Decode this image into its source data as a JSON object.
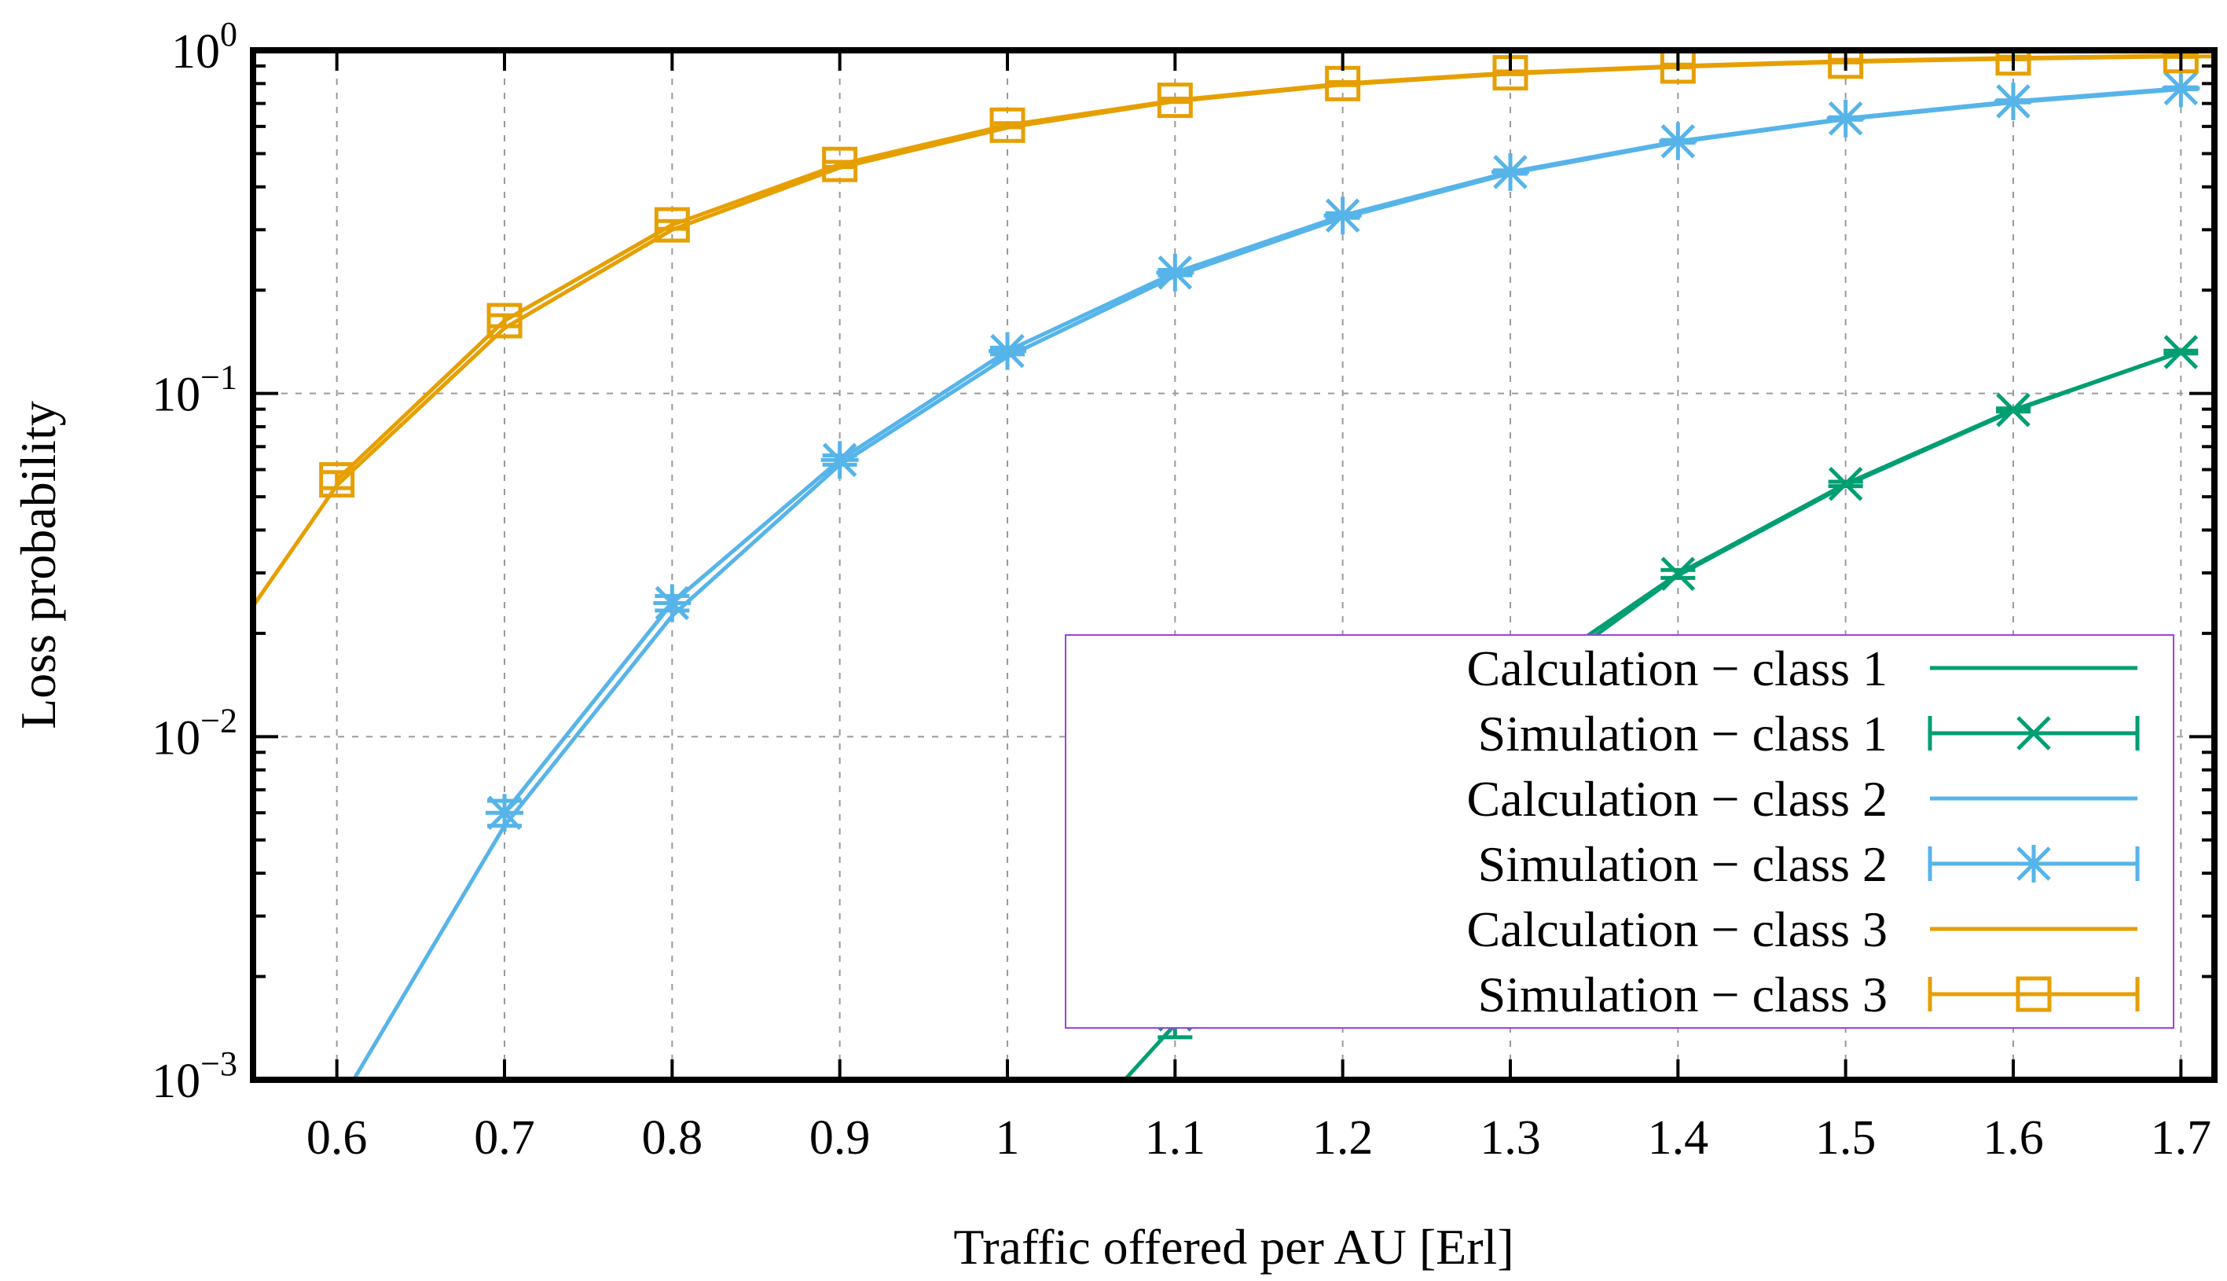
{
  "chart_data": {
    "type": "line",
    "xlabel": "Traffic offered per AU [Erl]",
    "ylabel": "Loss probability",
    "xlim": [
      0.55,
      1.72
    ],
    "ylim": [
      0.001,
      1.0
    ],
    "y_scale": "log",
    "x_ticks": [
      0.6,
      0.7,
      0.8,
      0.9,
      1.0,
      1.1,
      1.2,
      1.3,
      1.4,
      1.5,
      1.6,
      1.7
    ],
    "x_tick_labels": [
      "0.6",
      "0.7",
      "0.8",
      "0.9",
      "1",
      "1.1",
      "1.2",
      "1.3",
      "1.4",
      "1.5",
      "1.6",
      "1.7"
    ],
    "y_ticks": [
      0.001,
      0.01,
      0.1,
      1.0
    ],
    "y_tick_labels": [
      {
        "base": "10",
        "exp": "−3"
      },
      {
        "base": "10",
        "exp": "−2"
      },
      {
        "base": "10",
        "exp": "−1"
      },
      {
        "base": "10",
        "exp": "0"
      }
    ],
    "grid": true,
    "legend_position": "bottom-right",
    "series": [
      {
        "name": "Calculation − class 1",
        "kind": "calculation",
        "color": "#009e73",
        "x": [
          1.07,
          1.1,
          1.2,
          1.3,
          1.4,
          1.5,
          1.6,
          1.7
        ],
        "y": [
          0.001,
          0.00145,
          0.0048,
          0.013,
          0.0295,
          0.054,
          0.089,
          0.132
        ]
      },
      {
        "name": "Simulation − class 1",
        "kind": "simulation",
        "marker": "x",
        "color": "#009e73",
        "x": [
          1.1,
          1.2,
          1.3,
          1.4,
          1.5,
          1.6,
          1.7
        ],
        "y": [
          0.00155,
          0.0053,
          0.0138,
          0.0298,
          0.0545,
          0.0895,
          0.132
        ],
        "err": [
          0.00022,
          0.0008,
          0.0005,
          0.0008,
          0.0008,
          0.0009,
          0.0012
        ]
      },
      {
        "name": "Calculation − class 2",
        "kind": "calculation",
        "color": "#56b4e9",
        "x": [
          0.61,
          0.7,
          0.8,
          0.9,
          1.0,
          1.1,
          1.2,
          1.3,
          1.4,
          1.5,
          1.6,
          1.7
        ],
        "y": [
          0.001,
          0.0055,
          0.0225,
          0.062,
          0.128,
          0.22,
          0.325,
          0.438,
          0.54,
          0.63,
          0.705,
          0.77
        ]
      },
      {
        "name": "Simulation − class 2",
        "kind": "simulation",
        "marker": "asterisk",
        "color": "#56b4e9",
        "x": [
          0.7,
          0.8,
          0.9,
          1.0,
          1.1,
          1.2,
          1.3,
          1.4,
          1.5,
          1.6,
          1.7
        ],
        "y": [
          0.006,
          0.0245,
          0.064,
          0.133,
          0.225,
          0.33,
          0.442,
          0.543,
          0.633,
          0.71,
          0.775
        ],
        "err": [
          0.0005,
          0.0012,
          0.002,
          0.003,
          0.004,
          0.005,
          0.005,
          0.005,
          0.005,
          0.005,
          0.005
        ]
      },
      {
        "name": "Calculation − class 3",
        "kind": "calculation",
        "color": "#e69f00",
        "x": [
          0.55,
          0.6,
          0.7,
          0.8,
          0.9,
          1.0,
          1.1,
          1.2,
          1.3,
          1.4,
          1.5,
          1.6,
          1.7
        ],
        "y": [
          0.024,
          0.054,
          0.155,
          0.3,
          0.455,
          0.595,
          0.71,
          0.795,
          0.855,
          0.895,
          0.925,
          0.945,
          0.96
        ],
        "extend_to_x": 1.72
      },
      {
        "name": "Simulation − class 3",
        "kind": "simulation",
        "marker": "square",
        "color": "#e69f00",
        "x": [
          0.6,
          0.7,
          0.8,
          0.9,
          1.0,
          1.1,
          1.2,
          1.3,
          1.4,
          1.5,
          1.6,
          1.7
        ],
        "y": [
          0.056,
          0.163,
          0.31,
          0.465,
          0.605,
          0.715,
          0.8,
          0.86,
          0.9,
          0.93,
          0.95,
          0.965
        ],
        "err": [
          0.003,
          0.006,
          0.008,
          0.008,
          0.008,
          0.008,
          0.008,
          0.008,
          0.008,
          0.008,
          0.008,
          0.008
        ]
      }
    ]
  }
}
